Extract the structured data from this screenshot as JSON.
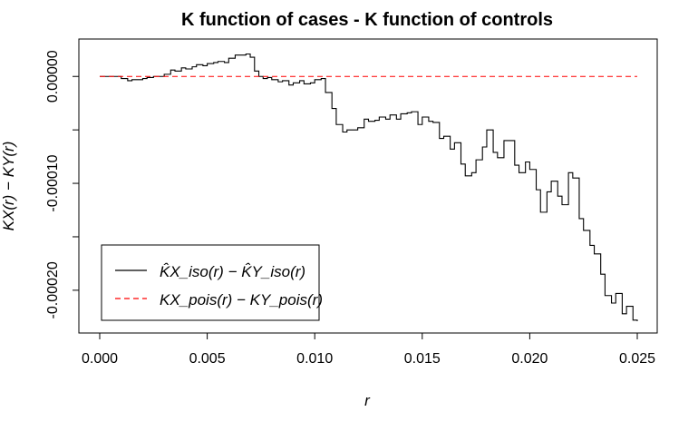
{
  "chart_data": {
    "type": "line",
    "title": "K function of cases - K function of controls",
    "xlabel": "r",
    "ylabel": "KX(r) − KY(r)",
    "xlim": [
      0,
      0.025
    ],
    "ylim": [
      -0.00024,
      3.5e-05
    ],
    "x_ticks": [
      0,
      0.005,
      0.01,
      0.015,
      0.02,
      0.025
    ],
    "x_tick_labels": [
      "0.000",
      "0.005",
      "0.010",
      "0.015",
      "0.020",
      "0.025"
    ],
    "y_ticks": [
      0,
      -0.0001,
      -0.0002
    ],
    "y_tick_labels": [
      "0.00000",
      "-0.00010",
      "-0.00020"
    ],
    "y_minor_ticks": [
      -5e-05,
      -0.00015
    ],
    "grid": false,
    "legend_position": "bottom-left",
    "series": [
      {
        "name": "K̂X_iso(r) − K̂Y_iso(r)",
        "color": "#000000",
        "dash": "solid",
        "x": [
          0,
          0.0005,
          0.001,
          0.0013,
          0.0015,
          0.002,
          0.0022,
          0.0025,
          0.003,
          0.0033,
          0.0035,
          0.0038,
          0.004,
          0.0043,
          0.0045,
          0.0048,
          0.005,
          0.0053,
          0.0055,
          0.0058,
          0.006,
          0.0063,
          0.0065,
          0.0068,
          0.007,
          0.0072,
          0.0074,
          0.0076,
          0.0078,
          0.008,
          0.0083,
          0.0085,
          0.0088,
          0.009,
          0.0093,
          0.0095,
          0.0098,
          0.01,
          0.0103,
          0.0105,
          0.0108,
          0.011,
          0.0113,
          0.0115,
          0.0118,
          0.012,
          0.0123,
          0.0125,
          0.0128,
          0.013,
          0.0133,
          0.0135,
          0.0138,
          0.014,
          0.0143,
          0.0145,
          0.0148,
          0.015,
          0.0153,
          0.0155,
          0.0158,
          0.016,
          0.0163,
          0.0165,
          0.0168,
          0.017,
          0.0173,
          0.0175,
          0.0178,
          0.018,
          0.0183,
          0.0185,
          0.0188,
          0.019,
          0.0193,
          0.0195,
          0.0198,
          0.02,
          0.0203,
          0.0205,
          0.0208,
          0.021,
          0.0213,
          0.0215,
          0.0218,
          0.022,
          0.0223,
          0.0225,
          0.0228,
          0.023,
          0.0233,
          0.0235,
          0.0238,
          0.024,
          0.0243,
          0.0245,
          0.0248,
          0.025
        ],
        "y": [
          0,
          0,
          -2e-06,
          -4e-06,
          -3e-06,
          -2e-06,
          -1e-06,
          0,
          2e-06,
          6e-06,
          5e-06,
          8e-06,
          7e-06,
          9e-06,
          1.1e-05,
          1e-05,
          1.2e-05,
          1.3e-05,
          1.4e-05,
          1.3e-05,
          1.7e-05,
          2e-05,
          2e-05,
          2.1e-05,
          1.8e-05,
          5e-06,
          0,
          -2e-06,
          -1e-06,
          -3e-06,
          -5e-06,
          -4e-06,
          -8e-06,
          -6e-06,
          -4e-06,
          -7e-06,
          -6e-06,
          -3e-06,
          -2e-06,
          -1.5e-05,
          -3e-05,
          -4.5e-05,
          -5.2e-05,
          -5e-05,
          -5e-05,
          -4.8e-05,
          -4e-05,
          -4.2e-05,
          -4.1e-05,
          -3.8e-05,
          -4e-05,
          -3.6e-05,
          -4e-05,
          -3.5e-05,
          -3.4e-05,
          -3.3e-05,
          -4.5e-05,
          -3.8e-05,
          -4.2e-05,
          -4.3e-05,
          -5.8e-05,
          -5.6e-05,
          -6.8e-05,
          -6.2e-05,
          -8.2e-05,
          -9.3e-05,
          -9e-05,
          -7.8e-05,
          -6.6e-05,
          -5e-05,
          -7.1e-05,
          -7.6e-05,
          -6e-05,
          -6e-05,
          -8.3e-05,
          -9e-05,
          -8e-05,
          -8.7e-05,
          -0.000106,
          -0.000127,
          -0.000108,
          -9.8e-05,
          -0.000112,
          -0.00012,
          -9e-05,
          -9.5e-05,
          -0.000133,
          -0.000144,
          -0.000158,
          -0.000166,
          -0.000185,
          -0.000205,
          -0.000212,
          -0.000203,
          -0.000222,
          -0.000215,
          -0.000228,
          -0.000229
        ]
      },
      {
        "name": "KX_pois(r) − KY_pois(r)",
        "color": "#ff0000",
        "dash": "dashed",
        "x": [
          0,
          0.025
        ],
        "y": [
          0,
          0
        ]
      }
    ]
  }
}
